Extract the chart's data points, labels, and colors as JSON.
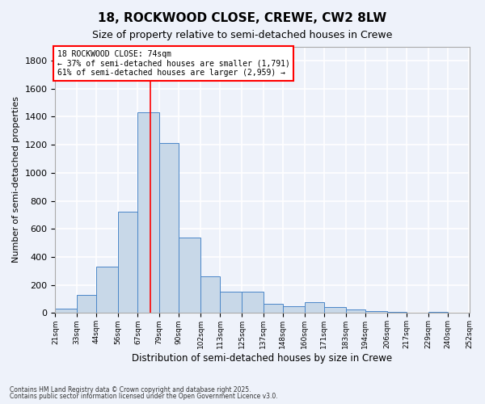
{
  "title": "18, ROCKWOOD CLOSE, CREWE, CW2 8LW",
  "subtitle": "Size of property relative to semi-detached houses in Crewe",
  "xlabel": "Distribution of semi-detached houses by size in Crewe",
  "ylabel": "Number of semi-detached properties",
  "footnote1": "Contains HM Land Registry data © Crown copyright and database right 2025.",
  "footnote2": "Contains public sector information licensed under the Open Government Licence v3.0.",
  "property_label": "18 ROCKWOOD CLOSE: 74sqm",
  "smaller_pct": "37% of semi-detached houses are smaller (1,791)",
  "larger_pct": "61% of semi-detached houses are larger (2,959)",
  "property_size": 74,
  "bar_color": "#c8d8e8",
  "bar_edge_color": "#4a86c8",
  "marker_color": "red",
  "background_color": "#eef2fa",
  "grid_color": "#ffffff",
  "ylim": [
    0,
    1900
  ],
  "yticks": [
    0,
    200,
    400,
    600,
    800,
    1000,
    1200,
    1400,
    1600,
    1800
  ],
  "bins": [
    21,
    33,
    44,
    56,
    67,
    79,
    90,
    102,
    113,
    125,
    137,
    148,
    160,
    171,
    183,
    194,
    206,
    217,
    229,
    240,
    252
  ],
  "bin_labels": [
    "21sqm",
    "33sqm",
    "44sqm",
    "56sqm",
    "67sqm",
    "79sqm",
    "90sqm",
    "102sqm",
    "113sqm",
    "125sqm",
    "137sqm",
    "148sqm",
    "160sqm",
    "171sqm",
    "183sqm",
    "194sqm",
    "206sqm",
    "217sqm",
    "229sqm",
    "240sqm",
    "252sqm"
  ],
  "values": [
    30,
    130,
    330,
    720,
    1430,
    1210,
    540,
    260,
    150,
    150,
    65,
    50,
    75,
    40,
    25,
    15,
    8,
    3,
    8,
    3
  ]
}
